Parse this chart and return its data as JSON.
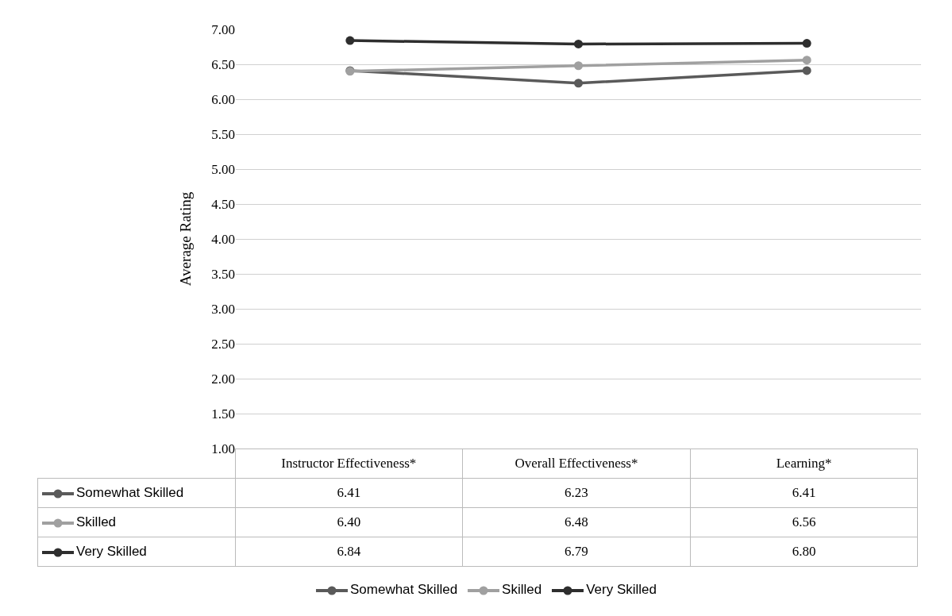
{
  "chart_data": {
    "type": "line",
    "ylabel": "Average Rating",
    "categories": [
      "Instructor Effectiveness*",
      "Overall Effectiveness*",
      "Learning*"
    ],
    "series": [
      {
        "name": "Somewhat Skilled",
        "color": "#5a5a5a",
        "values": [
          6.41,
          6.23,
          6.41
        ],
        "value_labels": [
          "6.41",
          "6.23",
          "6.41"
        ]
      },
      {
        "name": "Skilled",
        "color": "#a0a0a0",
        "values": [
          6.4,
          6.48,
          6.56
        ],
        "value_labels": [
          "6.40",
          "6.48",
          "6.56"
        ]
      },
      {
        "name": "Very Skilled",
        "color": "#2e2e2e",
        "values": [
          6.84,
          6.79,
          6.8
        ],
        "value_labels": [
          "6.84",
          "6.79",
          "6.80"
        ]
      }
    ],
    "ylim": [
      1,
      7
    ],
    "yticks": [
      {
        "value": 1,
        "label": "1.00"
      },
      {
        "value": 1.5,
        "label": "1.50"
      },
      {
        "value": 2,
        "label": "2.00"
      },
      {
        "value": 2.5,
        "label": "2.50"
      },
      {
        "value": 3,
        "label": "3.00"
      },
      {
        "value": 3.5,
        "label": "3.50"
      },
      {
        "value": 4,
        "label": "4.00"
      },
      {
        "value": 4.5,
        "label": "4.50"
      },
      {
        "value": 5,
        "label": "5.00"
      },
      {
        "value": 5.5,
        "label": "5.50"
      },
      {
        "value": 6,
        "label": "6.00"
      },
      {
        "value": 6.5,
        "label": "6.50"
      },
      {
        "value": 7,
        "label": "7.00"
      }
    ],
    "grid": "y",
    "legend": "bottom",
    "marker": "circle",
    "line_style": "solid"
  }
}
